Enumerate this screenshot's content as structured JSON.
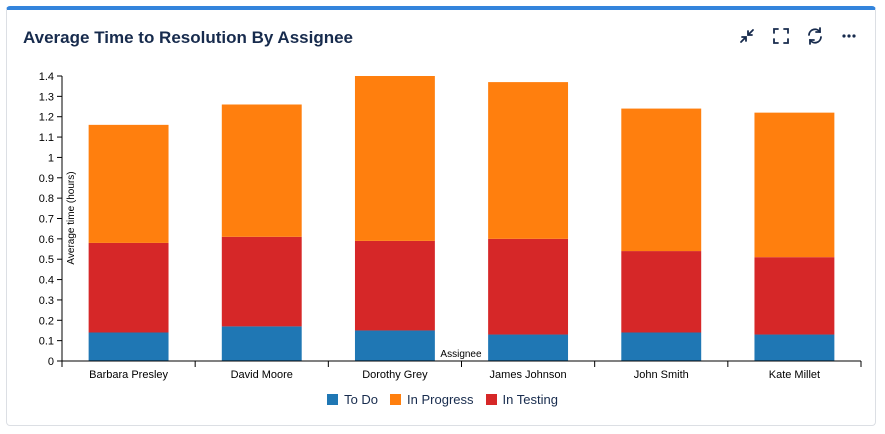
{
  "widget": {
    "title": "Average Time to Resolution By Assignee"
  },
  "toolbar": {
    "icons": [
      "collapse-icon",
      "fullscreen-icon",
      "refresh-icon",
      "more-icon"
    ]
  },
  "colors": {
    "todo": "#1f77b4",
    "inprogress": "#ff7f0e",
    "intesting": "#d62728",
    "accent": "#3384dc"
  },
  "chart_data": {
    "type": "bar",
    "stacked": true,
    "title": "Average Time to Resolution By Assignee",
    "xlabel": "Assignee",
    "ylabel": "Average time (hours)",
    "ylim": [
      0,
      1.4
    ],
    "yticks": [
      "0",
      "0.1",
      "0.2",
      "0.3",
      "0.4",
      "0.5",
      "0.6",
      "0.7",
      "0.8",
      "0.9",
      "1",
      "1.1",
      "1.2",
      "1.3",
      "1.4"
    ],
    "categories": [
      "Barbara Presley",
      "David Moore",
      "Dorothy Grey",
      "James Johnson",
      "John Smith",
      "Kate Millet"
    ],
    "series": [
      {
        "name": "To Do",
        "color": "#1f77b4",
        "values": [
          0.14,
          0.17,
          0.15,
          0.13,
          0.14,
          0.13
        ]
      },
      {
        "name": "In Testing",
        "color": "#d62728",
        "values": [
          0.44,
          0.44,
          0.44,
          0.47,
          0.4,
          0.38
        ]
      },
      {
        "name": "In Progress",
        "color": "#ff7f0e",
        "values": [
          0.58,
          0.65,
          0.81,
          0.77,
          0.7,
          0.71
        ]
      }
    ],
    "legend": [
      {
        "name": "To Do",
        "color": "#1f77b4"
      },
      {
        "name": "In Progress",
        "color": "#ff7f0e"
      },
      {
        "name": "In Testing",
        "color": "#d62728"
      }
    ],
    "legend_position": "bottom"
  }
}
